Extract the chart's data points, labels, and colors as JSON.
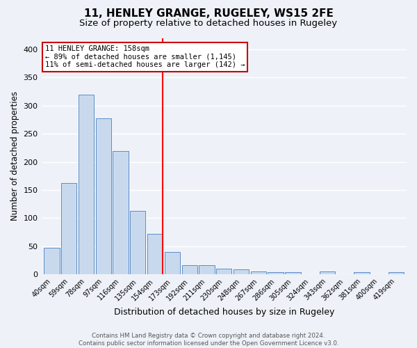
{
  "title": "11, HENLEY GRANGE, RUGELEY, WS15 2FE",
  "subtitle": "Size of property relative to detached houses in Rugeley",
  "xlabel": "Distribution of detached houses by size in Rugeley",
  "ylabel": "Number of detached properties",
  "footer_line1": "Contains HM Land Registry data © Crown copyright and database right 2024.",
  "footer_line2": "Contains public sector information licensed under the Open Government Licence v3.0.",
  "categories": [
    "40sqm",
    "59sqm",
    "78sqm",
    "97sqm",
    "116sqm",
    "135sqm",
    "154sqm",
    "173sqm",
    "192sqm",
    "211sqm",
    "230sqm",
    "248sqm",
    "267sqm",
    "286sqm",
    "305sqm",
    "324sqm",
    "343sqm",
    "362sqm",
    "381sqm",
    "400sqm",
    "419sqm"
  ],
  "values": [
    47,
    162,
    320,
    277,
    219,
    113,
    72,
    39,
    16,
    16,
    10,
    8,
    5,
    4,
    4,
    0,
    5,
    0,
    3,
    0,
    3
  ],
  "bar_color": "#c9d9ed",
  "bar_edge_color": "#5b8dc8",
  "red_line_index": 6,
  "annotation_title": "11 HENLEY GRANGE: 158sqm",
  "annotation_line1": "← 89% of detached houses are smaller (1,145)",
  "annotation_line2": "11% of semi-detached houses are larger (142) →",
  "annotation_box_color": "#ffffff",
  "annotation_box_edge": "#cc0000",
  "ylim": [
    0,
    420
  ],
  "background_color": "#eef2f8",
  "grid_color": "#ffffff",
  "title_fontsize": 11,
  "subtitle_fontsize": 9.5
}
